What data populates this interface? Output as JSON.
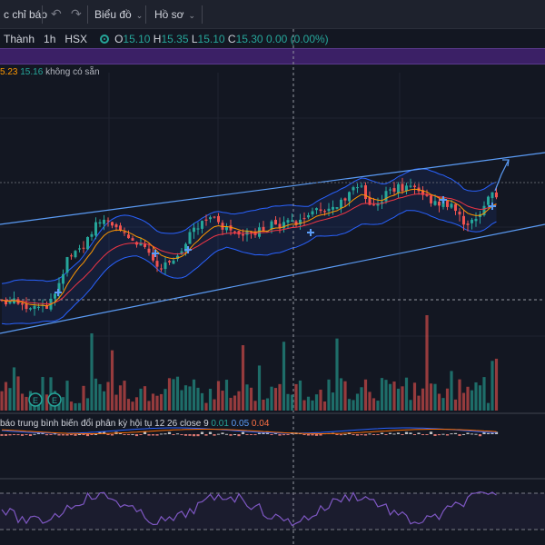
{
  "toolbar": {
    "indicators_label": "c chỉ báo",
    "chart_label": "Biểu đồ",
    "profile_label": "Hồ sơ"
  },
  "legend": {
    "symbol_name": "Thành",
    "interval": "1h",
    "exchange": "HSX",
    "open_label": "O",
    "open": "15.10",
    "high_label": "H",
    "high": "15.35",
    "low_label": "L",
    "low": "15.10",
    "close_label": "C",
    "close": "15.30",
    "change": "0.00 (0.00%)"
  },
  "indicator_row": {
    "value1": "5.23",
    "value2": "15.16",
    "na_text": "không có sẵn"
  },
  "macd": {
    "label": "báo trung bình biến đổi phân kỳ hội tụ",
    "params": "12 26 close 9",
    "v1": "0.01",
    "v2": "0.05",
    "v3": "0.04"
  },
  "event_badges": [
    "E",
    "E"
  ],
  "colors": {
    "background": "#131722",
    "up": "#26a69a",
    "down": "#ef5350",
    "channel": "#5b9cf6",
    "bands": "#2962ff",
    "ema_fast": "#ff9800",
    "ema_slow": "#f23645",
    "rsi": "#7e57c2",
    "banner": "#3b2066"
  },
  "icons": [
    "undo-icon",
    "redo-icon",
    "chevron-down-icon",
    "market-status-icon",
    "arrow-up-icon",
    "cross-marker-icon"
  ]
}
